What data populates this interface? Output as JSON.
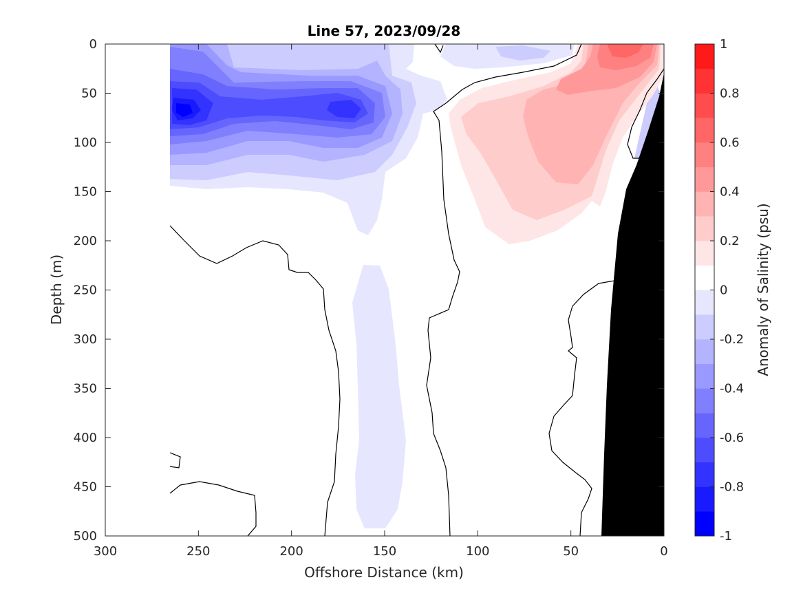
{
  "chart_data": {
    "type": "heatmap",
    "title": "Line 57, 2023/09/28",
    "xlabel": "Offshore Distance (km)",
    "ylabel": "Depth (m)",
    "xlim": [
      300,
      0
    ],
    "ylim": [
      0,
      500
    ],
    "x_reversed": true,
    "y_reversed": true,
    "x_ticks": [
      "300",
      "250",
      "200",
      "150",
      "100",
      "50",
      "0"
    ],
    "y_ticks": [
      "0",
      "50",
      "100",
      "150",
      "200",
      "250",
      "300",
      "350",
      "400",
      "450",
      "500"
    ],
    "colorbar": {
      "label": "Anomaly of Salinity (psu)",
      "range": [
        -1,
        1
      ],
      "tick_labels": [
        "1",
        "0.8",
        "0.6",
        "0.4",
        "0.2",
        "0",
        "-0.2",
        "-0.4",
        "-0.6",
        "-0.8",
        "-1"
      ],
      "levels": 20,
      "colors": [
        "#0000ff",
        "#1a1aff",
        "#3333ff",
        "#4d4dff",
        "#6666ff",
        "#8080ff",
        "#9999ff",
        "#b3b3ff",
        "#ccccff",
        "#e6e6ff",
        "#ffffff",
        "#ffe6e6",
        "#ffcccc",
        "#ffb3b3",
        "#ff9999",
        "#ff8080",
        "#ff6666",
        "#ff4d4d",
        "#ff3333",
        "#ff1a1a"
      ]
    },
    "data_extent_km": [
      265,
      0
    ],
    "bathymetry_color": "#000000",
    "zero_contour_color": "#000000",
    "features": [
      {
        "name": "negative anomaly core",
        "x_km": 258,
        "depth_m": 72,
        "value": -0.9
      },
      {
        "name": "negative anomaly core",
        "x_km": 170,
        "depth_m": 68,
        "value": -0.75
      },
      {
        "name": "positive anomaly core",
        "x_km": 25,
        "depth_m": 5,
        "value": 0.55
      },
      {
        "name": "negative anomaly tongue",
        "x_km": 155,
        "depth_m": 370,
        "value": -0.15
      }
    ]
  },
  "legend": {
    "colorbar_label": "Anomaly of Salinity (psu)"
  }
}
